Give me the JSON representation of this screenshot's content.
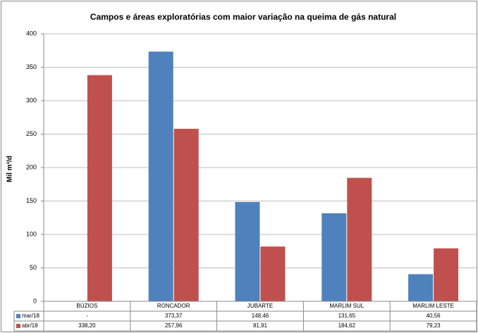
{
  "chart_data": {
    "type": "bar",
    "title": "Campos e áreas exploratórias com maior variação na queima de gás natural",
    "y_label": "Mil m³/d",
    "categories": [
      "BÚZIOS",
      "RONCADOR",
      "JUBARTE",
      "MARLIM SUL",
      "MARLIM LESTE"
    ],
    "series": [
      {
        "name": "mar/18",
        "color": "#4f81bd",
        "values": [
          null,
          373.37,
          148.46,
          131.65,
          40.56
        ],
        "value_labels": [
          "-",
          "373,37",
          "148,46",
          "131,65",
          "40,56"
        ]
      },
      {
        "name": "abr/18",
        "color": "#c0504d",
        "values": [
          338.2,
          257.96,
          81.91,
          184.62,
          79.23
        ],
        "value_labels": [
          "338,20",
          "257,96",
          "81,91",
          "184,62",
          "79,23"
        ]
      }
    ],
    "ylim": [
      0,
      400
    ],
    "yticks": [
      0,
      50,
      100,
      150,
      200,
      250,
      300,
      350,
      400
    ],
    "grid": true
  }
}
